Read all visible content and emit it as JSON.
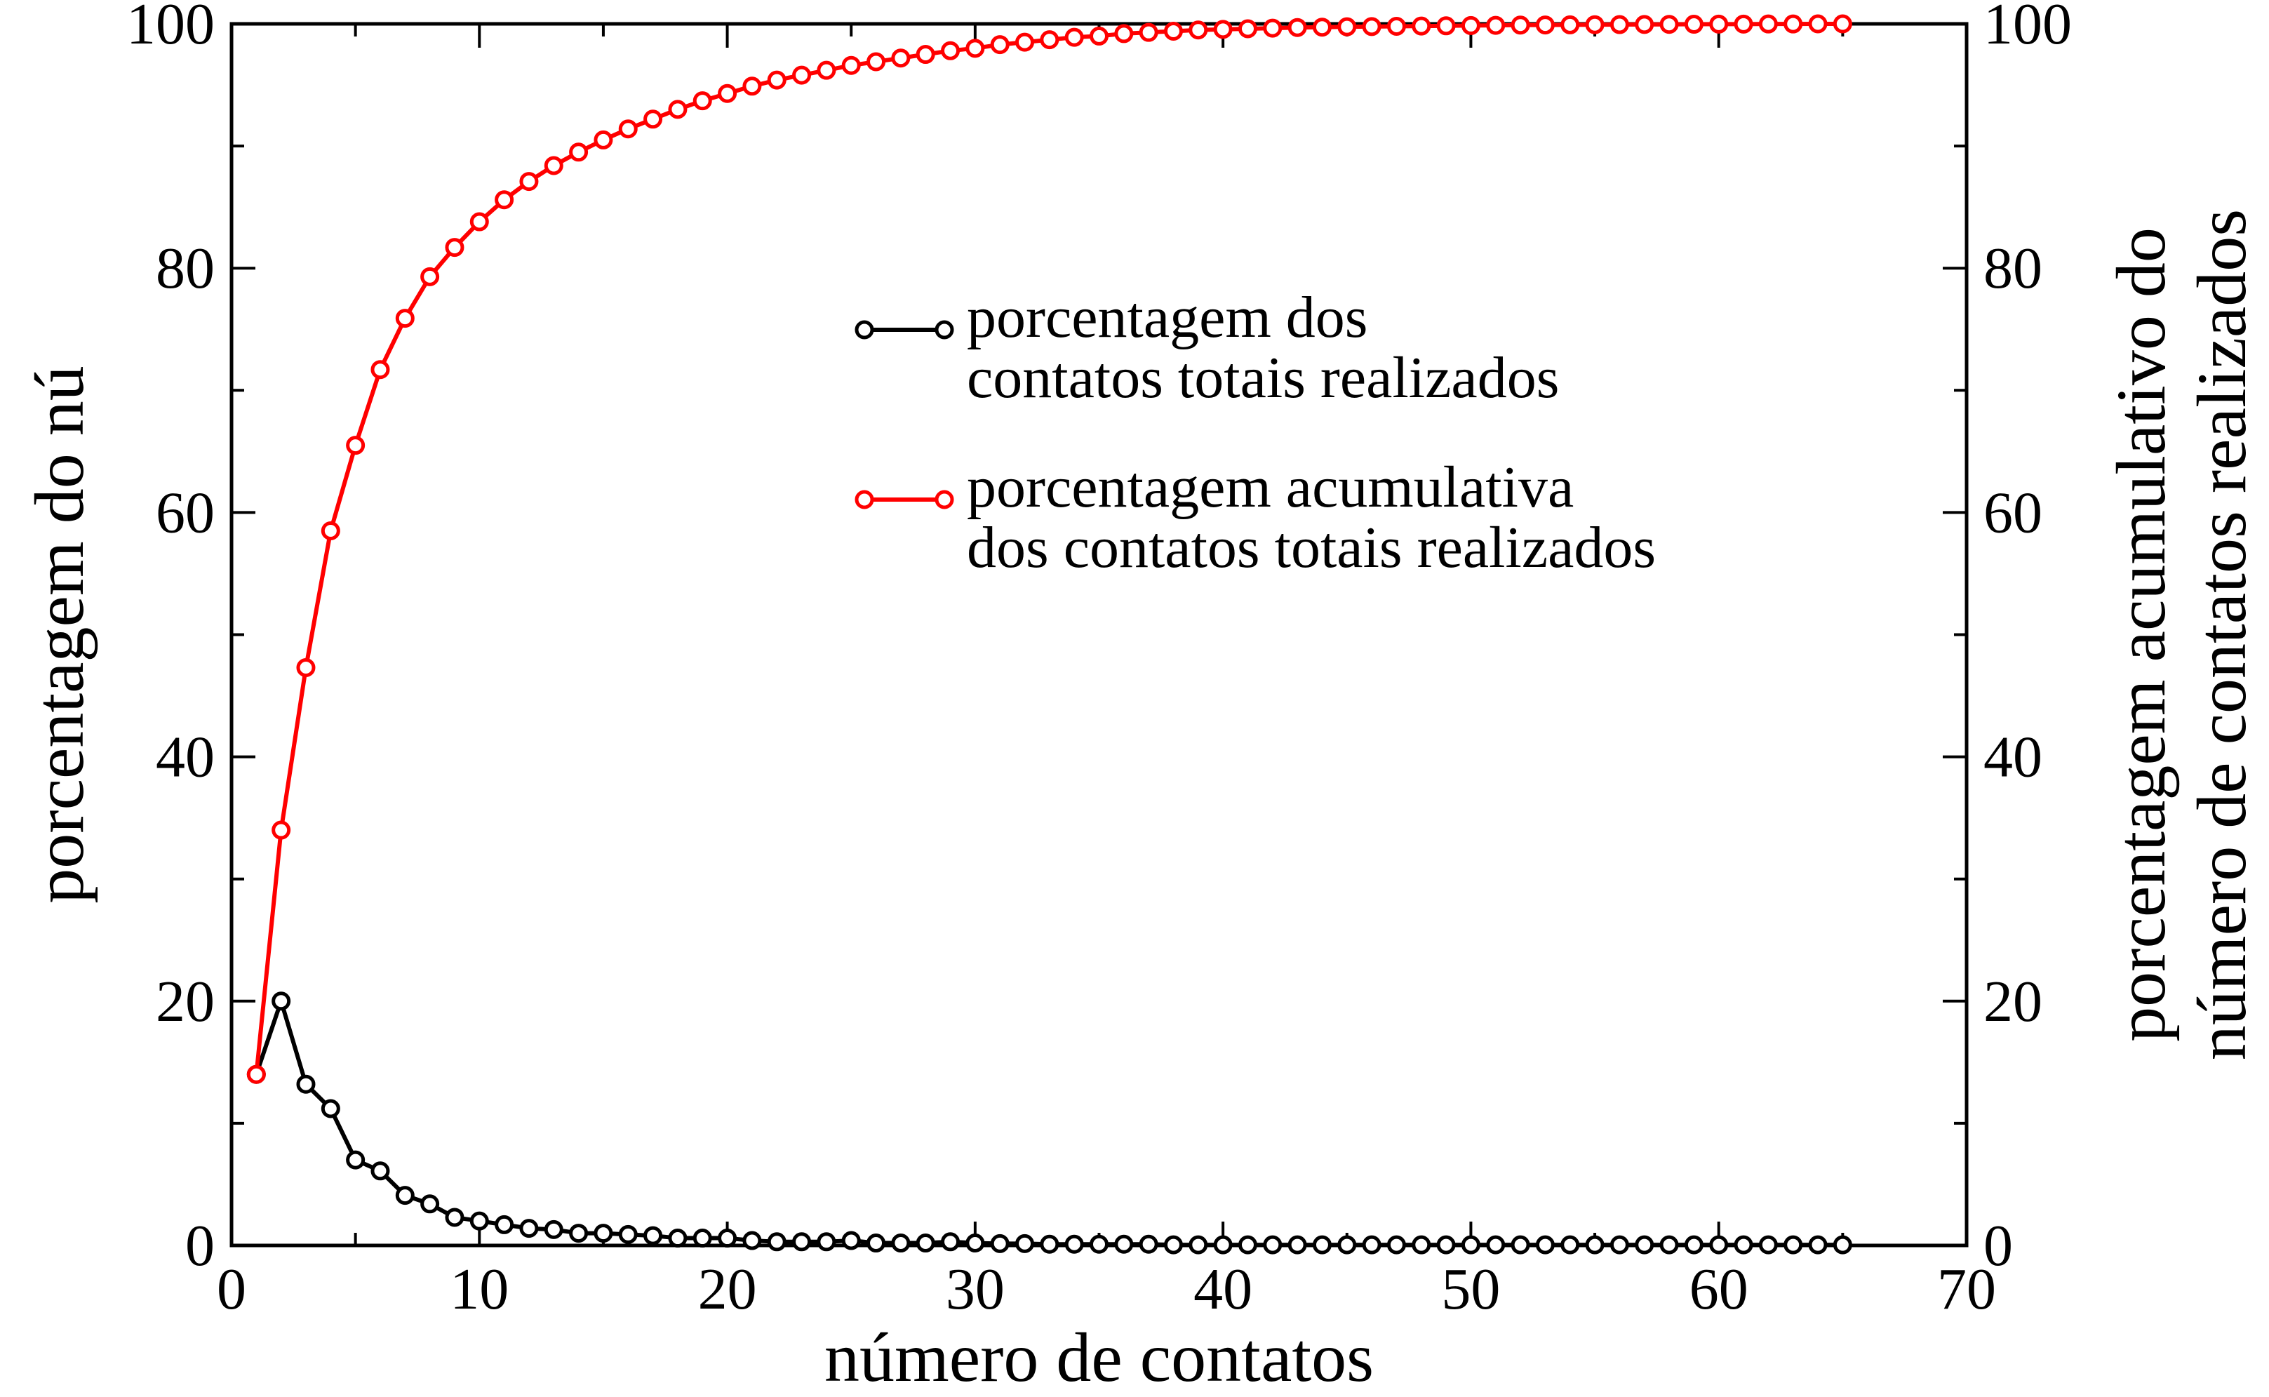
{
  "chart_data": {
    "type": "line",
    "xlabel": "número de contatos",
    "ylabel_left": "porcentagem do nú",
    "ylabel_right": [
      "porcentagem acumulativo do",
      "número de contatos realizados"
    ],
    "xlim": [
      0,
      70
    ],
    "ylim_left": [
      0,
      100
    ],
    "ylim_right": [
      0,
      100
    ],
    "x_ticks": [
      "0",
      "10",
      "20",
      "30",
      "40",
      "50",
      "60",
      "70"
    ],
    "y_ticks_left": [
      "0",
      "20",
      "40",
      "60",
      "80",
      "100"
    ],
    "y_ticks_right": [
      "0",
      "20",
      "40",
      "60",
      "80",
      "100"
    ],
    "grid": false,
    "legend_position": "upper-right-center",
    "series": [
      {
        "name": "porcentagem dos contatos totais realizados",
        "legend_lines": [
          "porcentagem dos",
          "contatos totais realizados"
        ],
        "color": "#000000",
        "marker": "open-circle",
        "x": [
          1,
          2,
          3,
          4,
          5,
          6,
          7,
          8,
          9,
          10,
          11,
          12,
          13,
          14,
          15,
          16,
          17,
          18,
          19,
          20,
          21,
          22,
          23,
          24,
          25,
          26,
          27,
          28,
          29,
          30,
          31,
          32,
          33,
          34,
          35,
          36,
          37,
          38,
          39,
          40,
          41,
          42,
          43,
          44,
          45,
          46,
          47,
          48,
          49,
          50,
          51,
          52,
          53,
          54,
          55,
          56,
          57,
          58,
          59,
          60,
          61,
          62,
          63,
          64,
          65
        ],
        "y": [
          14,
          20,
          13.2,
          11.2,
          7,
          6.1,
          4.1,
          3.4,
          2.3,
          2.0,
          1.7,
          1.4,
          1.3,
          1.0,
          1.0,
          0.9,
          0.8,
          0.6,
          0.6,
          0.6,
          0.4,
          0.3,
          0.3,
          0.3,
          0.4,
          0.2,
          0.2,
          0.2,
          0.3,
          0.2,
          0.15,
          0.15,
          0.1,
          0.1,
          0.1,
          0.1,
          0.1,
          0.05,
          0.05,
          0.05,
          0.05,
          0.05,
          0.05,
          0.05,
          0.05,
          0.05,
          0.05,
          0.05,
          0.05,
          0.05,
          0.05,
          0.05,
          0.05,
          0.05,
          0.05,
          0.05,
          0.05,
          0.05,
          0.05,
          0.05,
          0.05,
          0.05,
          0.05,
          0.05,
          0.05
        ]
      },
      {
        "name": "porcentagem acumulativa dos contatos totais realizados",
        "legend_lines": [
          "porcentagem acumulativa",
          "dos contatos totais realizados"
        ],
        "color": "#ff0000",
        "marker": "open-circle",
        "x": [
          1,
          2,
          3,
          4,
          5,
          6,
          7,
          8,
          9,
          10,
          11,
          12,
          13,
          14,
          15,
          16,
          17,
          18,
          19,
          20,
          21,
          22,
          23,
          24,
          25,
          26,
          27,
          28,
          29,
          30,
          31,
          32,
          33,
          34,
          35,
          36,
          37,
          38,
          39,
          40,
          41,
          42,
          43,
          44,
          45,
          46,
          47,
          48,
          49,
          50,
          51,
          52,
          53,
          54,
          55,
          56,
          57,
          58,
          59,
          60,
          61,
          62,
          63,
          64,
          65
        ],
        "y": [
          14,
          34,
          47.3,
          58.5,
          65.5,
          71.7,
          75.9,
          79.3,
          81.7,
          83.8,
          85.6,
          87.1,
          88.4,
          89.5,
          90.5,
          91.4,
          92.2,
          93.0,
          93.7,
          94.3,
          94.9,
          95.4,
          95.8,
          96.2,
          96.6,
          96.9,
          97.2,
          97.5,
          97.8,
          98.0,
          98.3,
          98.5,
          98.7,
          98.9,
          99.0,
          99.2,
          99.3,
          99.4,
          99.5,
          99.55,
          99.6,
          99.65,
          99.7,
          99.73,
          99.76,
          99.78,
          99.8,
          99.82,
          99.84,
          99.86,
          99.88,
          99.9,
          99.91,
          99.92,
          99.93,
          99.94,
          99.95,
          99.96,
          99.97,
          99.98,
          99.98,
          99.99,
          99.99,
          100,
          100
        ]
      }
    ]
  }
}
